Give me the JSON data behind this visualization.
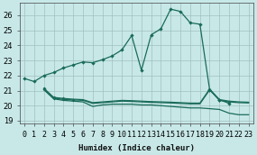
{
  "xlabel": "Humidex (Indice chaleur)",
  "background_color": "#c8e8e8",
  "grid_color": "#a0c0c0",
  "line_color": "#1a6b5a",
  "xlim": [
    -0.5,
    23.5
  ],
  "ylim": [
    18.8,
    26.8
  ],
  "yticks": [
    19,
    20,
    21,
    22,
    23,
    24,
    25,
    26
  ],
  "xtick_labels": [
    "0",
    "1",
    "2",
    "3",
    "4",
    "5",
    "6",
    "7",
    "8",
    "9",
    "10",
    "11",
    "12",
    "13",
    "14",
    "15",
    "16",
    "17",
    "18",
    "19",
    "20",
    "21",
    "22",
    "23"
  ],
  "line1_x": [
    0,
    1,
    2,
    3,
    4,
    5,
    6,
    7,
    8,
    9,
    10,
    11,
    12,
    13,
    14,
    15,
    16,
    17,
    18,
    19,
    20,
    21
  ],
  "line1_y": [
    21.8,
    21.6,
    22.0,
    22.2,
    22.5,
    22.7,
    22.9,
    22.85,
    23.05,
    23.3,
    23.7,
    24.65,
    22.35,
    24.7,
    25.1,
    26.4,
    26.25,
    25.5,
    25.4,
    21.05,
    20.4,
    20.15
  ],
  "line2_x": [
    2,
    3,
    4,
    5,
    6,
    7,
    8,
    9,
    10,
    11,
    12,
    13,
    14,
    15,
    16,
    17,
    18,
    19,
    20,
    21,
    22,
    23
  ],
  "line2_y": [
    21.05,
    20.45,
    20.35,
    20.3,
    20.25,
    19.95,
    20.05,
    20.1,
    20.1,
    20.1,
    20.05,
    20.05,
    20.0,
    19.95,
    19.9,
    19.85,
    19.85,
    19.8,
    19.75,
    19.5,
    19.4,
    19.4
  ],
  "line3_x": [
    2,
    3,
    4,
    5,
    6,
    7,
    8,
    9,
    10,
    11,
    12,
    13,
    14,
    15,
    16,
    17,
    18,
    19,
    20,
    21,
    22,
    23
  ],
  "line3_y": [
    21.1,
    20.5,
    20.42,
    20.38,
    20.35,
    20.15,
    20.2,
    20.25,
    20.3,
    20.28,
    20.25,
    20.22,
    20.2,
    20.18,
    20.15,
    20.12,
    20.12,
    21.05,
    20.35,
    20.25,
    20.2,
    20.18
  ],
  "line4_x": [
    2,
    3,
    4,
    5,
    6,
    7,
    8,
    9,
    10,
    11,
    12,
    13,
    14,
    15,
    16,
    17,
    18,
    19,
    20,
    21,
    22,
    23
  ],
  "line4_y": [
    21.15,
    20.55,
    20.48,
    20.43,
    20.4,
    20.2,
    20.25,
    20.3,
    20.35,
    20.33,
    20.3,
    20.27,
    20.25,
    20.23,
    20.2,
    20.17,
    20.17,
    21.1,
    20.4,
    20.3,
    20.25,
    20.23
  ]
}
